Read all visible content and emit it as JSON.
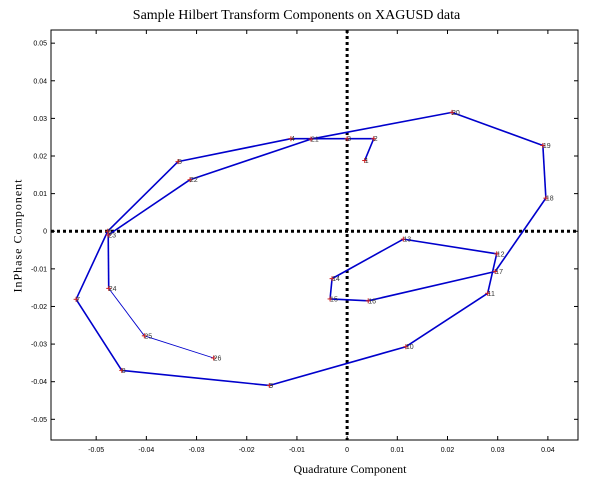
{
  "chart_data": {
    "type": "line",
    "title": "Sample Hilbert Transform Components on XAGUSD data",
    "xlabel": "Quadrature Component",
    "ylabel": "InPhase Component",
    "xlim": [
      -0.059,
      0.046
    ],
    "ylim": [
      -0.0555,
      0.0535
    ],
    "xticks": [
      "-0.05",
      "-0.04",
      "-0.03",
      "-0.02",
      "-0.01",
      "0",
      "0.01",
      "0.02",
      "0.03",
      "0.04"
    ],
    "yticks": [
      "-0.05",
      "-0.04",
      "-0.03",
      "-0.02",
      "-0.01",
      "0",
      "0.01",
      "0.02",
      "0.03",
      "0.04",
      "0.05"
    ],
    "xtick_values": [
      -0.05,
      -0.04,
      -0.03,
      -0.02,
      -0.01,
      0,
      0.01,
      0.02,
      0.03,
      0.04
    ],
    "ytick_values": [
      -0.05,
      -0.04,
      -0.03,
      -0.02,
      -0.01,
      0,
      0.01,
      0.02,
      0.03,
      0.04,
      0.05
    ],
    "grid": false,
    "zero_lines": "dotted",
    "line_color": "#0000cc",
    "marker_color": "#cc2222",
    "points": [
      {
        "label": "1",
        "x": 0.0035,
        "y": 0.0188
      },
      {
        "label": "2",
        "x": 0.0053,
        "y": 0.0246
      },
      {
        "label": "3",
        "x": 0.0,
        "y": 0.0246
      },
      {
        "label": "4",
        "x": -0.0112,
        "y": 0.0246
      },
      {
        "label": "5",
        "x": -0.0337,
        "y": 0.0185
      },
      {
        "label": "6",
        "x": -0.0477,
        "y": 0.0
      },
      {
        "label": "7",
        "x": -0.054,
        "y": -0.0181
      },
      {
        "label": "8",
        "x": -0.0449,
        "y": -0.037
      },
      {
        "label": "9",
        "x": -0.0155,
        "y": -0.041
      },
      {
        "label": "10",
        "x": 0.0117,
        "y": -0.0307
      },
      {
        "label": "11",
        "x": 0.028,
        "y": -0.0165
      },
      {
        "label": "12",
        "x": 0.0298,
        "y": -0.006
      },
      {
        "label": "13",
        "x": 0.0112,
        "y": -0.0021
      },
      {
        "label": "14",
        "x": -0.003,
        "y": -0.0126
      },
      {
        "label": "15",
        "x": -0.0034,
        "y": -0.018
      },
      {
        "label": "16",
        "x": 0.0042,
        "y": -0.0185
      },
      {
        "label": "17",
        "x": 0.0295,
        "y": -0.0107
      },
      {
        "label": "18",
        "x": 0.0396,
        "y": 0.0088
      },
      {
        "label": "19",
        "x": 0.039,
        "y": 0.0228
      },
      {
        "label": "20",
        "x": 0.0209,
        "y": 0.0316
      },
      {
        "label": "21",
        "x": -0.0072,
        "y": 0.0245
      },
      {
        "label": "22",
        "x": -0.0313,
        "y": 0.0137
      },
      {
        "label": "23",
        "x": -0.0476,
        "y": -0.001
      },
      {
        "label": "24",
        "x": -0.0475,
        "y": -0.0152
      },
      {
        "label": "25",
        "x": -0.0404,
        "y": -0.0278
      },
      {
        "label": "26",
        "x": -0.0266,
        "y": -0.0337
      }
    ],
    "thick_segments_through": 24
  }
}
